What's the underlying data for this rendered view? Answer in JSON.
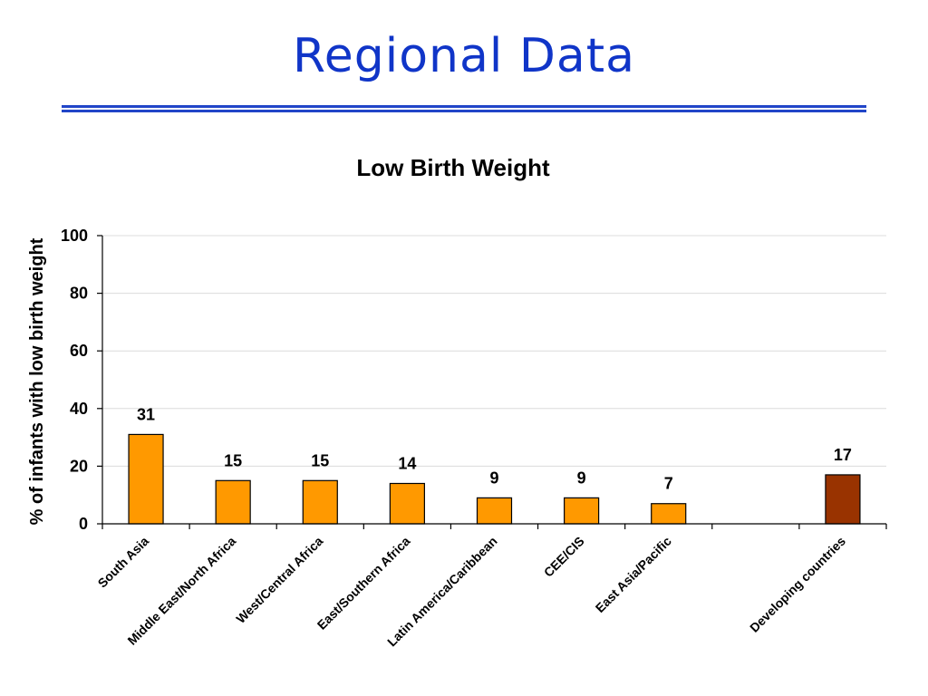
{
  "slide": {
    "title": "Regional Data"
  },
  "chart_data": {
    "type": "bar",
    "title": "Low Birth Weight",
    "xlabel": "",
    "ylabel": "% of infants with low birth weight",
    "ylim": [
      0,
      100
    ],
    "yticks": [
      0,
      20,
      40,
      60,
      80,
      100
    ],
    "grid": true,
    "categories": [
      "South Asia",
      "Middle East/North Africa",
      "West/Central Africa",
      "East/Southern Africa",
      "Latin America/Caribbean",
      "CEE/CIS",
      "East Asia/Pacific",
      "",
      "Developing countries"
    ],
    "values": [
      31,
      15,
      15,
      14,
      9,
      9,
      7,
      null,
      17
    ],
    "data_labels": [
      "31",
      "15",
      "15",
      "14",
      "9",
      "9",
      "7",
      "",
      "17"
    ],
    "colors": {
      "bar": "#ff9900",
      "highlight_bar": "#993300",
      "bar_outline": "#000000"
    },
    "highlight_index": 8
  }
}
